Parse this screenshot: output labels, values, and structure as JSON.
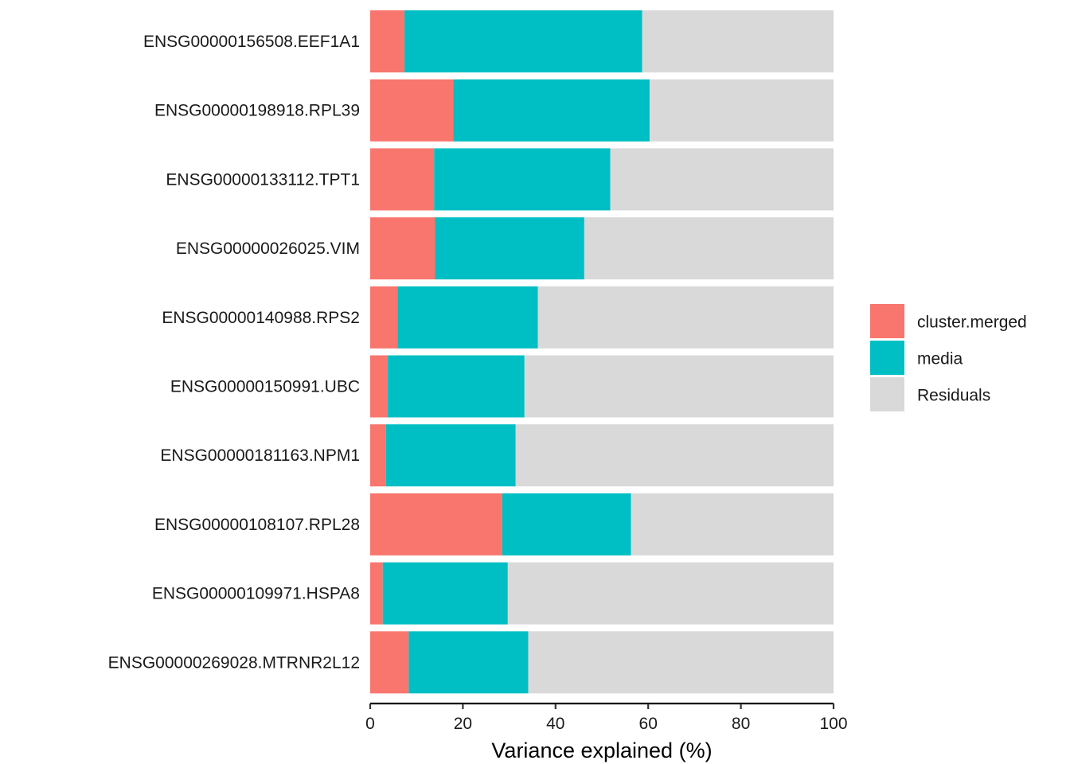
{
  "chart_data": {
    "type": "bar",
    "orientation": "horizontal",
    "stacked": true,
    "title": "",
    "xlabel": "Variance explained (%)",
    "ylabel": "",
    "xlim": [
      0,
      100
    ],
    "xticks": [
      0,
      20,
      40,
      60,
      80,
      100
    ],
    "grid": false,
    "legend_position": "right",
    "categories": [
      "ENSG00000156508.EEF1A1",
      "ENSG00000198918.RPL39",
      "ENSG00000133112.TPT1",
      "ENSG00000026025.VIM",
      "ENSG00000140988.RPS2",
      "ENSG00000150991.UBC",
      "ENSG00000181163.NPM1",
      "ENSG00000108107.RPL28",
      "ENSG00000109971.HSPA8",
      "ENSG00000269028.MTRNR2L12"
    ],
    "series": [
      {
        "name": "cluster.merged",
        "color": "#F8766D",
        "values": [
          7.4,
          17.9,
          13.8,
          14.0,
          5.9,
          3.8,
          3.4,
          28.5,
          2.7,
          8.3
        ]
      },
      {
        "name": "media",
        "color": "#00BFC4",
        "values": [
          51.3,
          42.4,
          38.0,
          32.2,
          30.3,
          29.5,
          28.0,
          27.8,
          27.0,
          25.8
        ]
      },
      {
        "name": "Residuals",
        "color": "#D9D9D9",
        "values": [
          41.3,
          39.7,
          48.2,
          53.8,
          63.8,
          66.7,
          68.6,
          43.7,
          70.3,
          65.9
        ]
      }
    ]
  }
}
